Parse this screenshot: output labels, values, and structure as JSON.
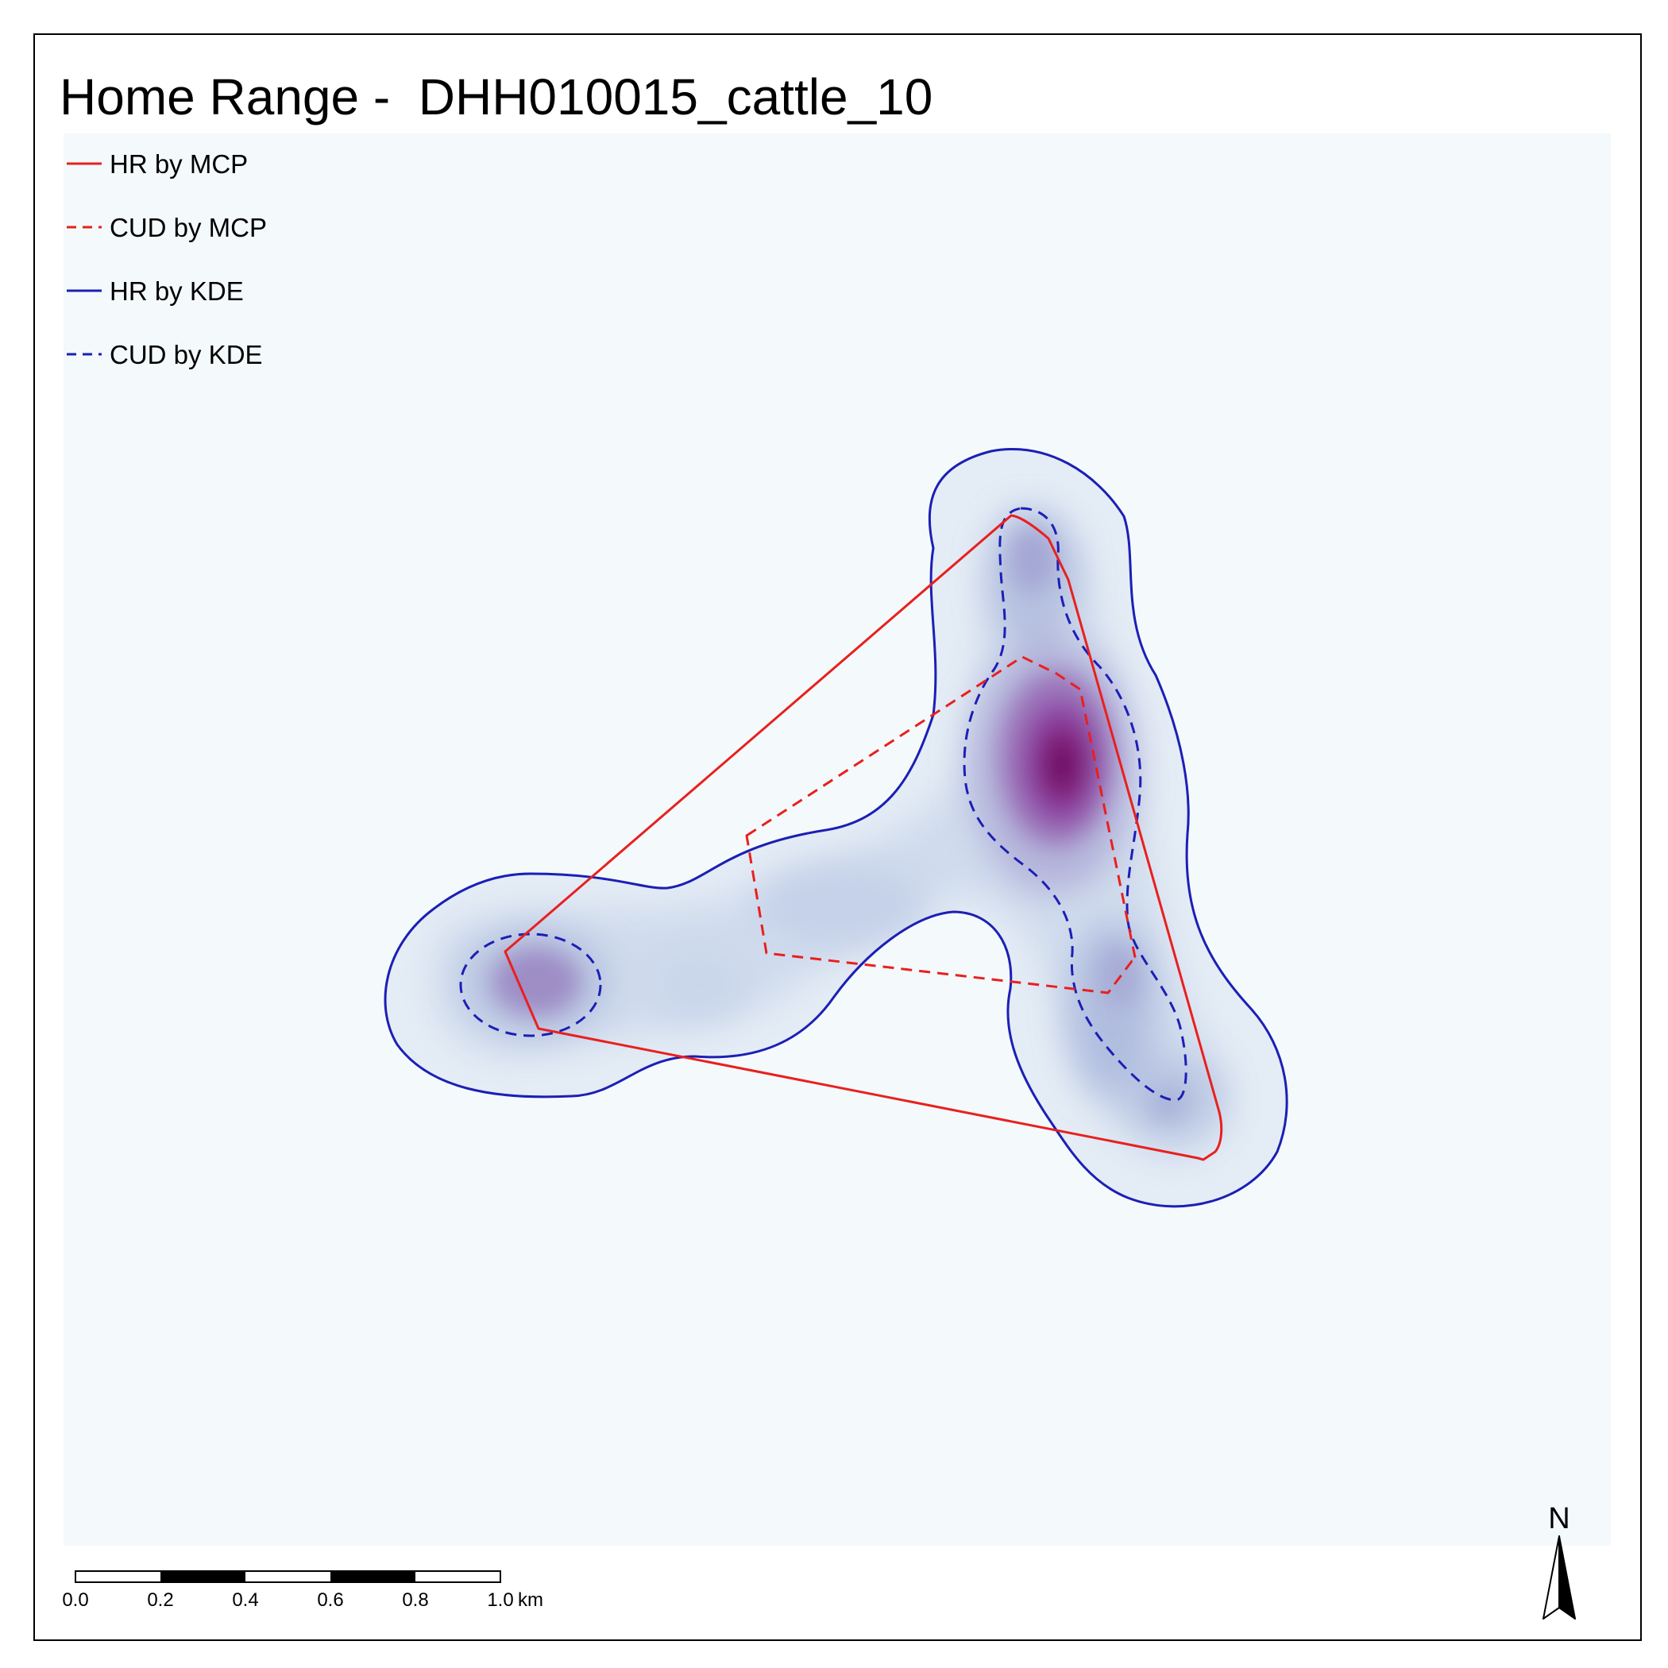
{
  "map": {
    "title": "Home Range -  DHH010015_cattle_10",
    "background_color": "#f4f9fb",
    "density_colors": [
      "#dbe5f1",
      "#c4d3e8",
      "#a9b8db",
      "#9b86c4",
      "#8f4da8",
      "#83217f",
      "#6a0d5e"
    ],
    "legend": [
      {
        "label": "HR by MCP",
        "color": "#e8201e",
        "style": "solid"
      },
      {
        "label": "CUD by MCP",
        "color": "#e8201e",
        "style": "dashed"
      },
      {
        "label": "HR by KDE",
        "color": "#1b1fb5",
        "style": "solid"
      },
      {
        "label": "CUD by KDE",
        "color": "#1b1fb5",
        "style": "dashed"
      }
    ],
    "scale_bar": {
      "ticks": [
        "0.0",
        "0.2",
        "0.4",
        "0.6",
        "0.8",
        "1.0"
      ],
      "unit": "km"
    },
    "north_arrow": {
      "label": "N"
    }
  }
}
